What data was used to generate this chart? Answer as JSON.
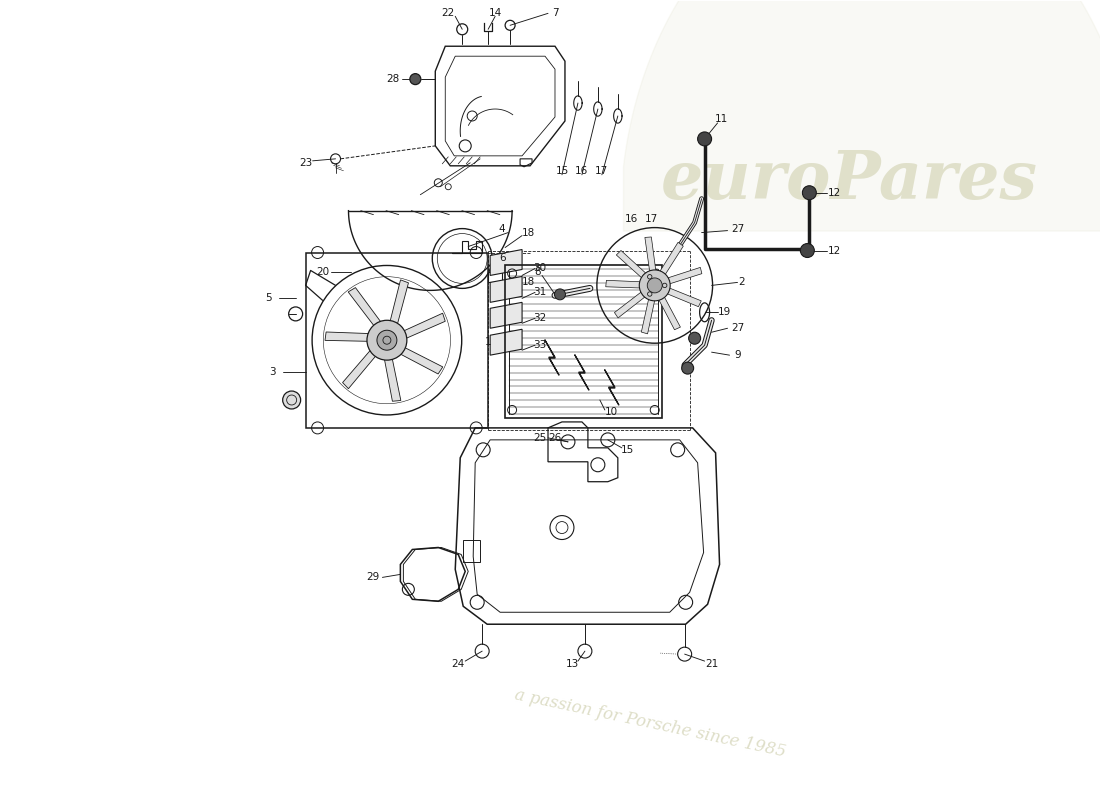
{
  "bg_color": "#ffffff",
  "lc": "#1a1a1a",
  "wm1": "#c8c8a0",
  "wm2": "#d0d0b0",
  "fig_w": 11.0,
  "fig_h": 8.0,
  "dpi": 100
}
